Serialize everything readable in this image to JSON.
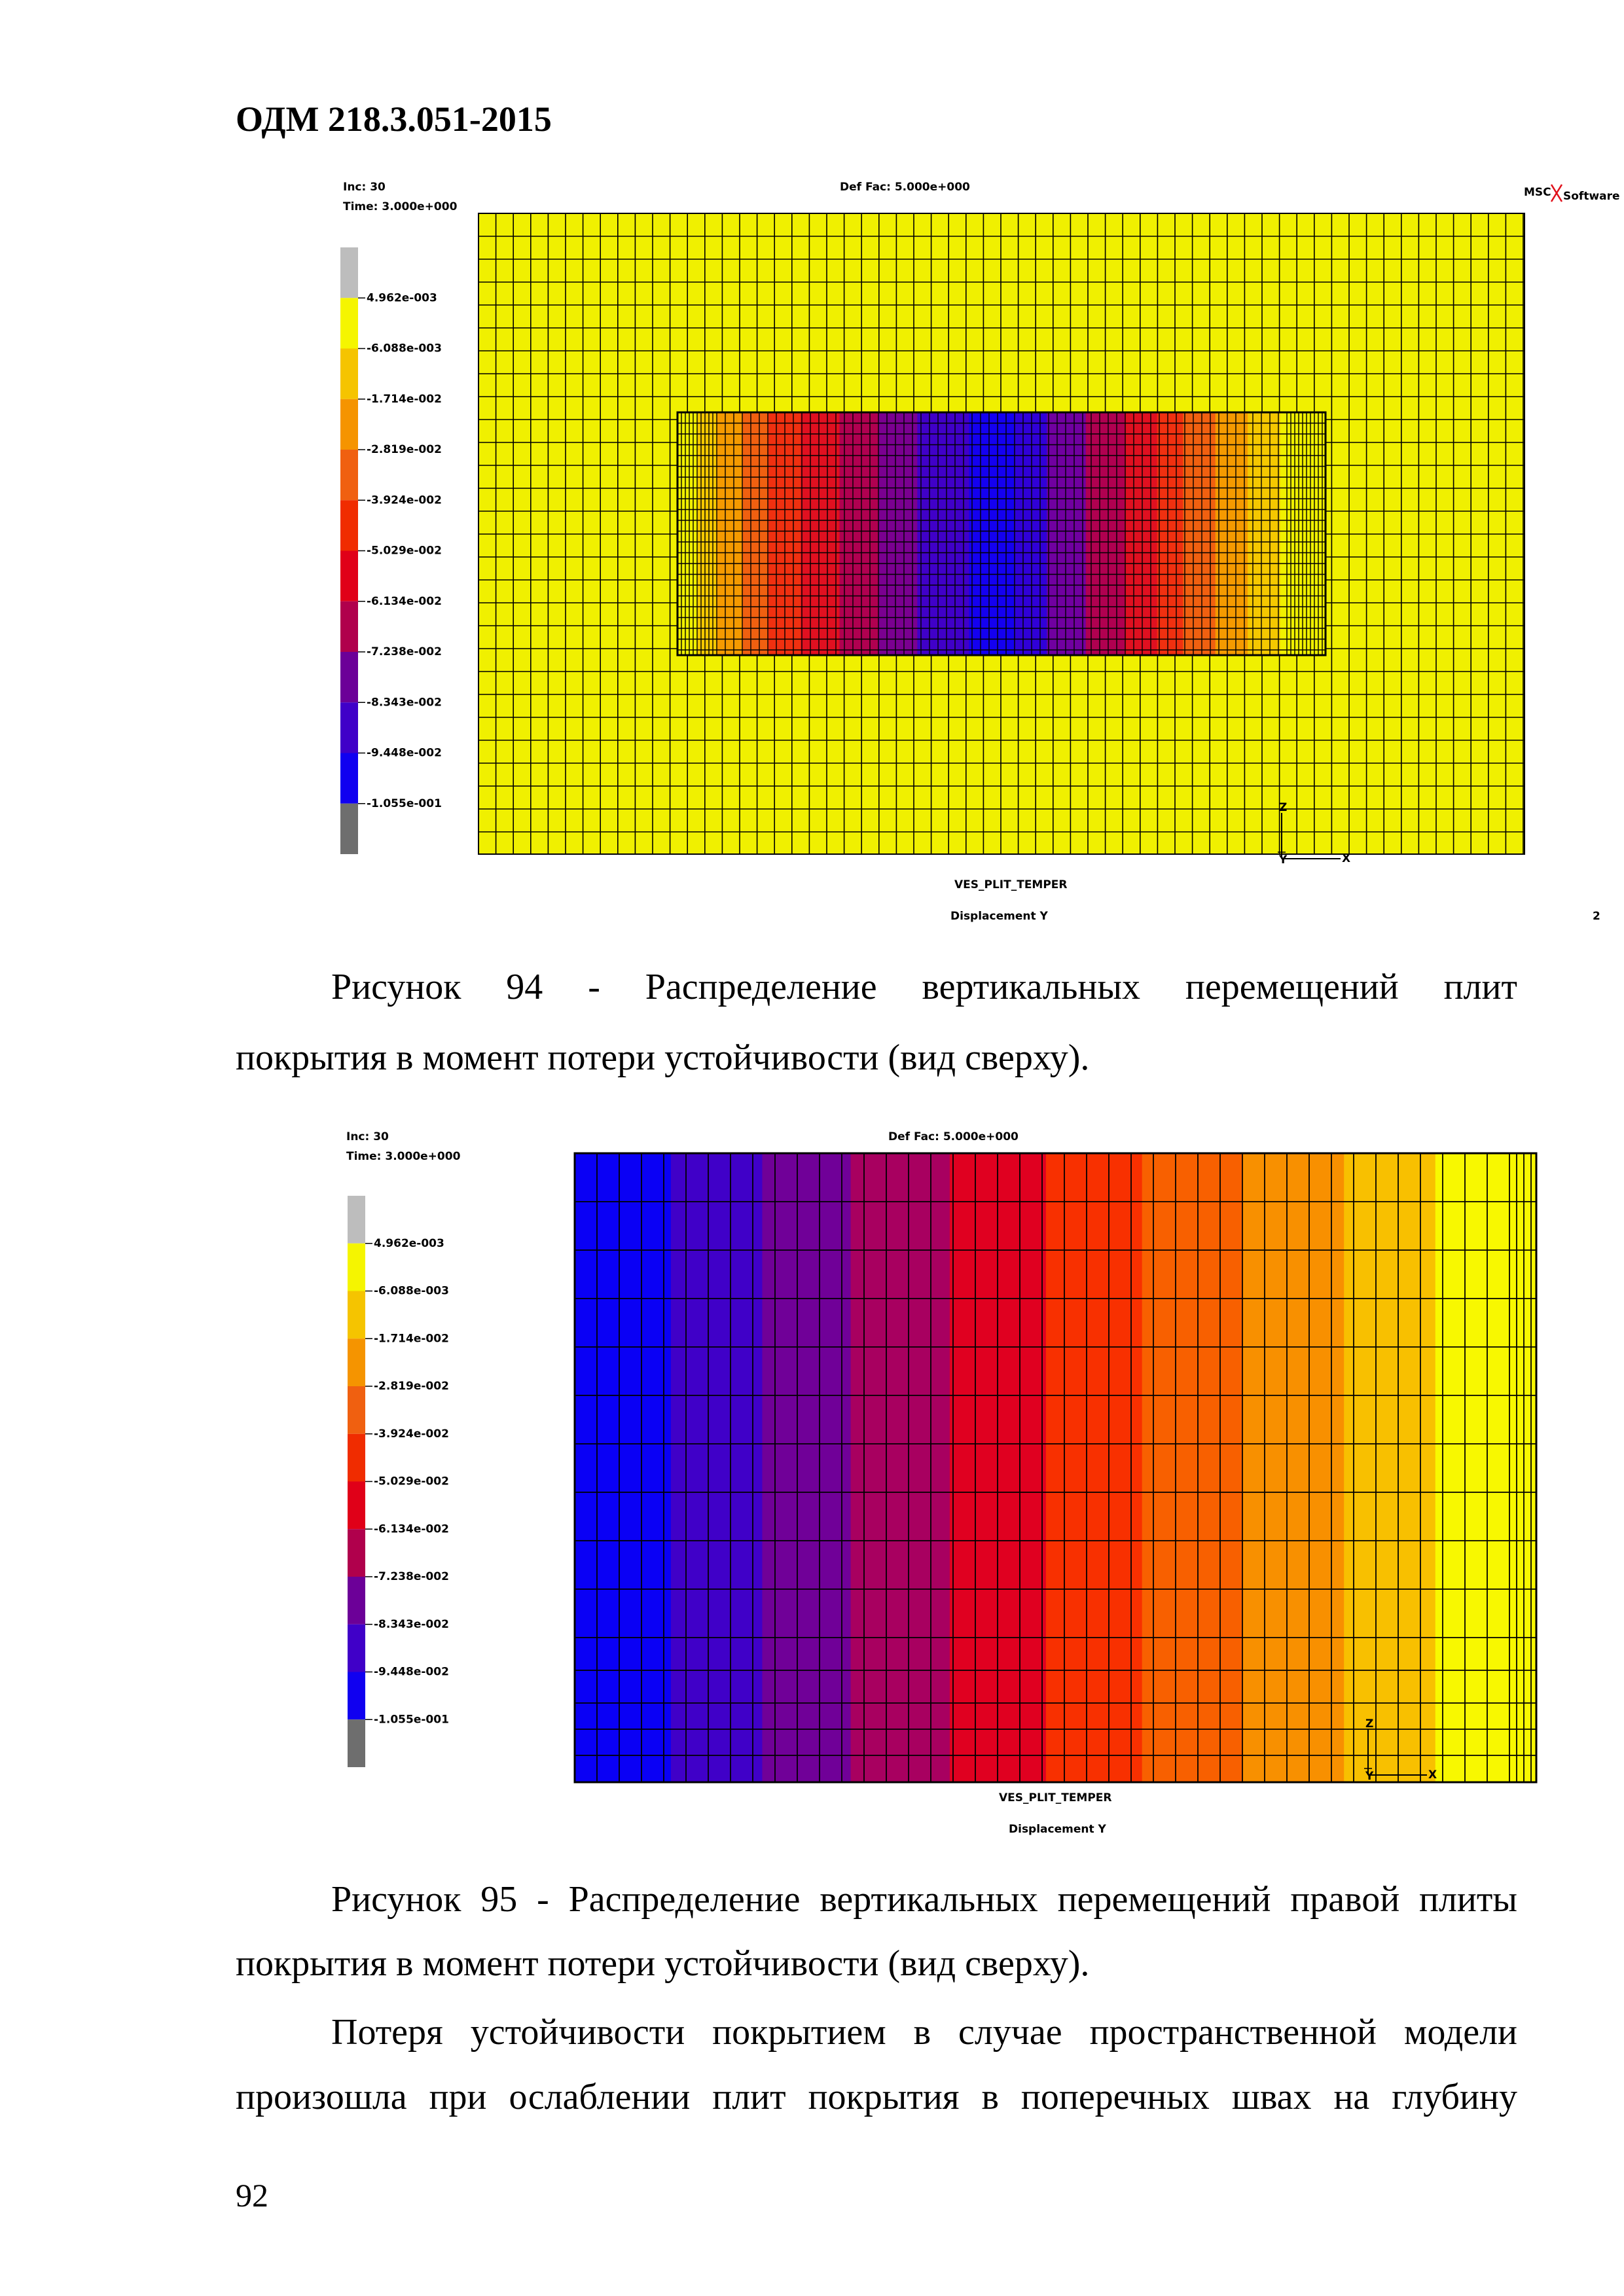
{
  "header": {
    "title": "ОДМ 218.3.051-2015"
  },
  "figures": [
    {
      "inc": "Inc:  30",
      "time": "Time:  3.000e+000",
      "def_fac": "Def Fac:  5.000e+000",
      "logo_left": "MSC",
      "logo_right": "Software",
      "legend": [
        "4.962e-003",
        "-6.088e-003",
        "-1.714e-002",
        "-2.819e-002",
        "-3.924e-002",
        "-5.029e-002",
        "-6.134e-002",
        "-7.238e-002",
        "-8.343e-002",
        "-9.448e-002",
        "-1.055e-001"
      ],
      "triad": [
        "Z",
        "Y",
        "X"
      ],
      "model": "VES_PLIT_TEMPER",
      "result": "Displacement Y",
      "frame": "2",
      "caption": [
        "Рисунок 94 - Распределение вертикальных перемещений плит",
        "покрытия в момент потери устойчивости (вид сверху)."
      ]
    },
    {
      "inc": "Inc:  30",
      "time": "Time:  3.000e+000",
      "def_fac": "Def Fac:  5.000e+000",
      "legend": [
        "4.962e-003",
        "-6.088e-003",
        "-1.714e-002",
        "-2.819e-002",
        "-3.924e-002",
        "-5.029e-002",
        "-6.134e-002",
        "-7.238e-002",
        "-8.343e-002",
        "-9.448e-002",
        "-1.055e-001"
      ],
      "triad": [
        "Z",
        "Y",
        "X"
      ],
      "model": "VES_PLIT_TEMPER",
      "result": "Displacement Y",
      "caption": [
        "Рисунок 95 - Распределение вертикальных перемещений правой плиты",
        "покрытия в момент потери устойчивости (вид сверху)."
      ]
    }
  ],
  "paragraph": [
    "Потеря устойчивости покрытием в случае пространственной модели",
    "произошла при ослаблении плит покрытия в поперечных швах на глубину"
  ],
  "page_number": "92"
}
